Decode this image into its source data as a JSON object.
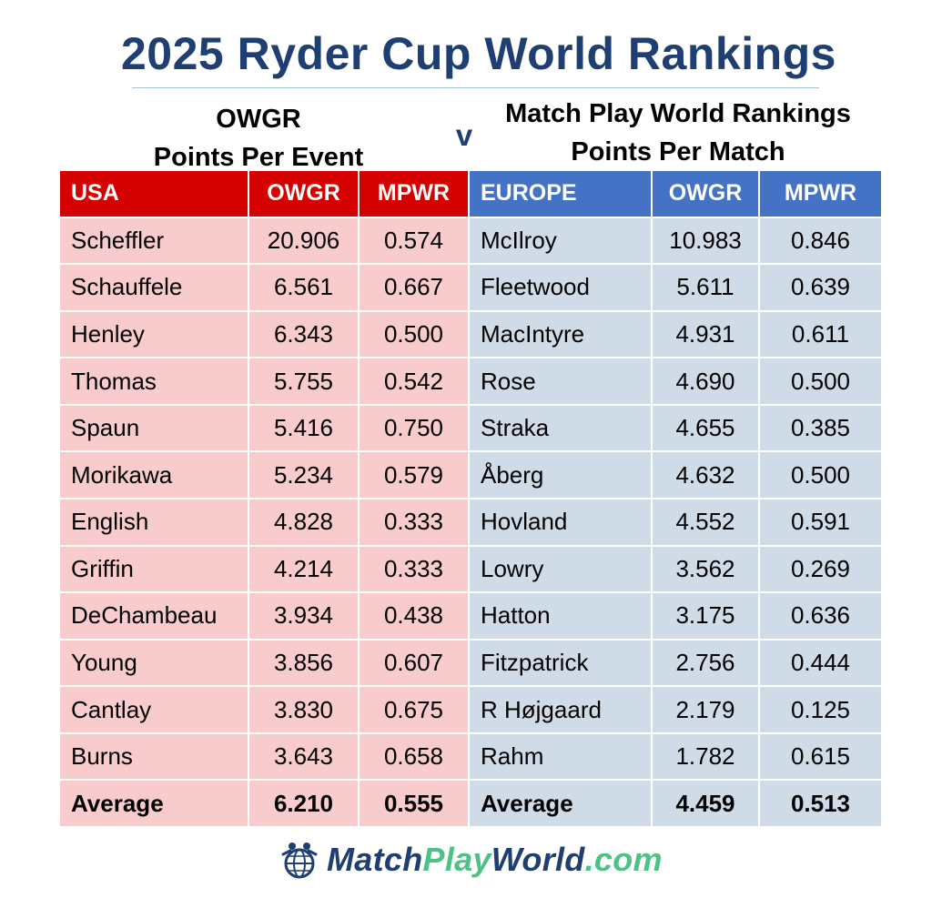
{
  "title": "2025 Ryder Cup World Rankings",
  "subtitle_left": [
    "OWGR",
    "Points Per Event"
  ],
  "versus": "v",
  "subtitle_right": [
    "Match Play World Rankings",
    "Points Per Match"
  ],
  "table": {
    "usa_header": [
      "USA",
      "OWGR",
      "MPWR"
    ],
    "europe_header": [
      "EUROPE",
      "OWGR",
      "MPWR"
    ],
    "usa_rows": [
      [
        "Scheffler",
        "20.906",
        "0.574"
      ],
      [
        "Schauffele",
        "6.561",
        "0.667"
      ],
      [
        "Henley",
        "6.343",
        "0.500"
      ],
      [
        "Thomas",
        "5.755",
        "0.542"
      ],
      [
        "Spaun",
        "5.416",
        "0.750"
      ],
      [
        "Morikawa",
        "5.234",
        "0.579"
      ],
      [
        "English",
        "4.828",
        "0.333"
      ],
      [
        "Griffin",
        "4.214",
        "0.333"
      ],
      [
        "DeChambeau",
        "3.934",
        "0.438"
      ],
      [
        "Young",
        "3.856",
        "0.607"
      ],
      [
        "Cantlay",
        "3.830",
        "0.675"
      ],
      [
        "Burns",
        "3.643",
        "0.658"
      ]
    ],
    "europe_rows": [
      [
        "McIlroy",
        "10.983",
        "0.846"
      ],
      [
        "Fleetwood",
        "5.611",
        "0.639"
      ],
      [
        "MacIntyre",
        "4.931",
        "0.611"
      ],
      [
        "Rose",
        "4.690",
        "0.500"
      ],
      [
        "Straka",
        "4.655",
        "0.385"
      ],
      [
        "Åberg",
        "4.632",
        "0.500"
      ],
      [
        "Hovland",
        "4.552",
        "0.591"
      ],
      [
        "Lowry",
        "3.562",
        "0.269"
      ],
      [
        "Hatton",
        "3.175",
        "0.636"
      ],
      [
        "Fitzpatrick",
        "2.756",
        "0.444"
      ],
      [
        "R Højgaard",
        "2.179",
        "0.125"
      ],
      [
        "Rahm",
        "1.782",
        "0.615"
      ]
    ],
    "usa_average": [
      "Average",
      "6.210",
      "0.555"
    ],
    "europe_average": [
      "Average",
      "4.459",
      "0.513"
    ]
  },
  "logo": {
    "part1": "Match",
    "part2": "Play",
    "part3": "World",
    "part4": ".com",
    "icon": "golf-globe-icon"
  },
  "colors": {
    "title": "#1f3f73",
    "usa_header": "#d50000",
    "usa_row": "#f8cbcc",
    "europe_header": "#4472c4",
    "europe_row": "#d0dbe8",
    "logo_green": "#4cc284"
  }
}
